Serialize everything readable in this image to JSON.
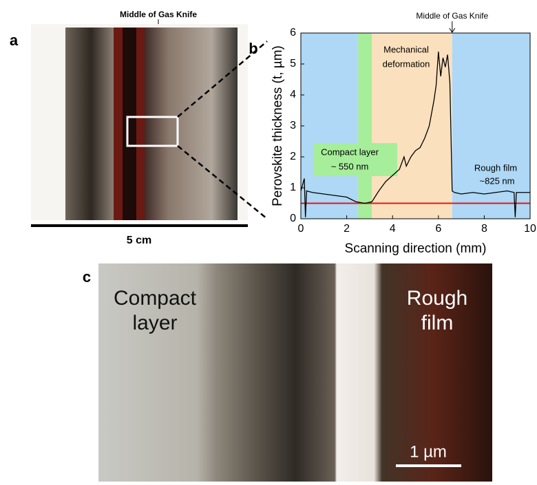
{
  "panel_a": {
    "label": "a",
    "annotation": "Middle of Gas Knife",
    "scale_bar": "5 cm"
  },
  "chart_data": {
    "type": "line",
    "panel_label": "b",
    "annotation": {
      "text": "Middle of Gas Knife",
      "x": 6.6
    },
    "xlabel": "Scanning direction (mm)",
    "ylabel": "Perovskite thickness (t, µm)",
    "xlim": [
      0,
      10
    ],
    "ylim": [
      0,
      6
    ],
    "xticks": [
      0,
      2,
      4,
      6,
      8,
      10
    ],
    "yticks": [
      0,
      1,
      2,
      3,
      4,
      5,
      6
    ],
    "regions": [
      {
        "range": [
          0,
          2.5
        ],
        "color": "#aed8f5"
      },
      {
        "range": [
          2.5,
          3.1
        ],
        "color": "#a6ee9a",
        "label": [
          "Compact  layer",
          "~ 550 nm"
        ]
      },
      {
        "range": [
          3.1,
          6.6
        ],
        "color": "#fae0bd",
        "label": [
          "Mechanical",
          "deformation"
        ]
      },
      {
        "range": [
          6.6,
          10
        ],
        "color": "#aed8f5",
        "label": [
          "Rough film",
          "~825 nm"
        ]
      }
    ],
    "reference_line": {
      "value": 0.5,
      "color": "#e8141c"
    },
    "x": [
      0,
      0.15,
      0.2,
      0.25,
      0.5,
      1,
      1.5,
      2,
      2.4,
      2.8,
      3.1,
      3.4,
      3.7,
      4,
      4.3,
      4.5,
      4.6,
      4.8,
      5,
      5.2,
      5.4,
      5.6,
      5.8,
      5.9,
      6,
      6.1,
      6.2,
      6.3,
      6.4,
      6.5,
      6.6,
      6.7,
      7,
      7.5,
      8,
      8.5,
      9,
      9.3,
      9.35,
      9.4,
      9.5,
      10
    ],
    "series": [
      {
        "color": "#000000",
        "values": [
          0.9,
          1.3,
          0.05,
          0.9,
          0.85,
          0.8,
          0.75,
          0.7,
          0.55,
          0.5,
          0.55,
          0.9,
          1.2,
          1.4,
          1.6,
          2.0,
          1.7,
          2.0,
          2.2,
          2.3,
          2.6,
          3.0,
          3.8,
          4.3,
          5.4,
          4.6,
          5.2,
          4.9,
          5.3,
          4.4,
          0.9,
          0.85,
          0.8,
          0.85,
          0.8,
          0.85,
          0.9,
          0.85,
          0.05,
          0.85,
          0.85,
          0.85
        ]
      }
    ]
  },
  "panel_c": {
    "label": "c",
    "left_text": [
      "Compact",
      "layer"
    ],
    "right_text": [
      "Rough",
      "film"
    ],
    "scale_bar": "1 µm"
  }
}
